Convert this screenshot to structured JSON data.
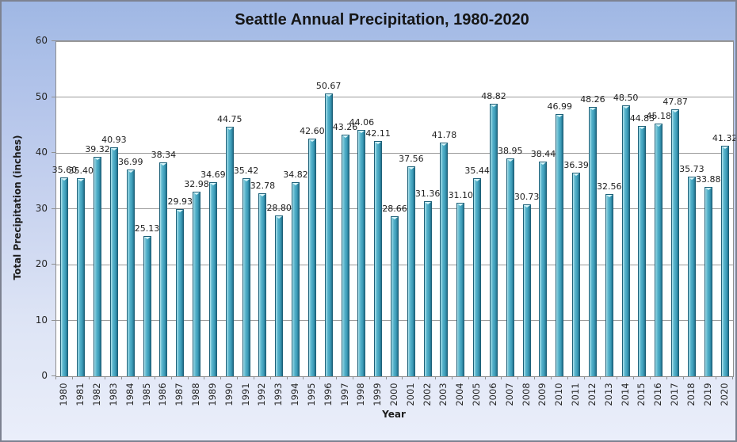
{
  "chart_data": {
    "type": "bar",
    "title": "Seattle Annual Precipitation, 1980-2020",
    "xlabel": "Year",
    "ylabel": "Total Precipitation (inches)",
    "ylim": [
      0,
      60
    ],
    "yticks": [
      0,
      10,
      20,
      30,
      40,
      50,
      60
    ],
    "grid": true,
    "legend": false,
    "data_labels_shown": true,
    "categories": [
      "1980",
      "1981",
      "1982",
      "1983",
      "1984",
      "1985",
      "1986",
      "1987",
      "1988",
      "1989",
      "1990",
      "1991",
      "1992",
      "1993",
      "1994",
      "1995",
      "1996",
      "1997",
      "1998",
      "1999",
      "2000",
      "2001",
      "2002",
      "2003",
      "2004",
      "2005",
      "2006",
      "2007",
      "2008",
      "2009",
      "2010",
      "2011",
      "2012",
      "2013",
      "2014",
      "2015",
      "2016",
      "2017",
      "2018",
      "2019",
      "2020"
    ],
    "values": [
      35.6,
      35.4,
      39.32,
      40.93,
      36.99,
      25.13,
      38.34,
      29.93,
      32.98,
      34.69,
      44.75,
      35.42,
      32.78,
      28.8,
      34.82,
      42.6,
      50.67,
      43.26,
      44.06,
      42.11,
      28.66,
      37.56,
      31.36,
      41.78,
      31.1,
      35.44,
      48.82,
      38.95,
      30.73,
      38.44,
      46.99,
      36.39,
      48.26,
      32.56,
      48.5,
      44.83,
      45.18,
      47.87,
      35.73,
      33.88,
      41.32
    ]
  },
  "colors": {
    "bar_fill": "#4BACC6",
    "bar_border": "#1D6078",
    "bar_highlight": "#D8F5F9",
    "gridline": "#9A9A9A",
    "plot_background": "#FFFFFF",
    "background_top": "#9FB7E4",
    "background_bottom": "#EAEEFA",
    "text": "#262626"
  }
}
